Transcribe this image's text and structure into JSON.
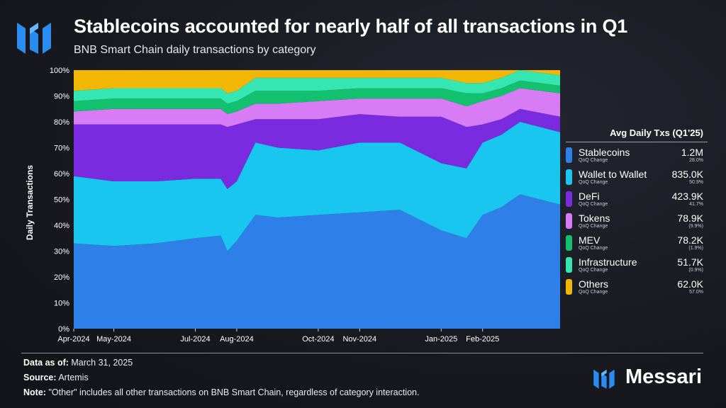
{
  "header": {
    "title": "Stablecoins accounted for nearly half of all transactions in Q1",
    "subtitle": "BNB Smart Chain daily transactions by category"
  },
  "legend": {
    "title": "Avg Daily Txs (Q1'25)",
    "sub_label": "QoQ Change",
    "items": [
      {
        "name": "Stablecoins",
        "value": "1.2M",
        "change": "28.0%",
        "color": "#2f7fe8"
      },
      {
        "name": "Wallet to Wallet",
        "value": "835.0K",
        "change": "50.9%",
        "color": "#19c6f0"
      },
      {
        "name": "DeFi",
        "value": "423.9K",
        "change": "41.7%",
        "color": "#7a2be0"
      },
      {
        "name": "Tokens",
        "value": "78.9K",
        "change": "(9.9%)",
        "color": "#d77cf5"
      },
      {
        "name": "MEV",
        "value": "78.2K",
        "change": "(1.9%)",
        "color": "#12c06e"
      },
      {
        "name": "Infrastructure",
        "value": "51.7K",
        "change": "(0.9%)",
        "color": "#35e6b2"
      },
      {
        "name": "Others",
        "value": "62.0K",
        "change": "57.0%",
        "color": "#f2b705"
      }
    ]
  },
  "footer": {
    "data_as_of_label": "Data as of:",
    "data_as_of": "March 31, 2025",
    "source_label": "Source:",
    "source": "Artemis",
    "note_label": "Note:",
    "note": "\"Other\" includes all other transactions on BNB Smart Chain, regardless of category interaction.",
    "brand": "Messari"
  },
  "chart_data": {
    "type": "area",
    "stacked": true,
    "ylabel": "Daily Transactions",
    "ylim": [
      0,
      100
    ],
    "y_unit": "%",
    "y_ticks": [
      "0%",
      "10%",
      "20%",
      "30%",
      "40%",
      "50%",
      "60%",
      "70%",
      "80%",
      "90%",
      "100%"
    ],
    "x_tick_labels": [
      "Apr-2024",
      "May-2024",
      "Jul-2024",
      "Aug-2024",
      "Oct-2024",
      "Nov-2024",
      "Jan-2025",
      "Feb-2025"
    ],
    "x": [
      "2024-04-01",
      "2024-05-01",
      "2024-06-01",
      "2024-07-01",
      "2024-07-20",
      "2024-07-25",
      "2024-08-01",
      "2024-08-15",
      "2024-09-01",
      "2024-10-01",
      "2024-11-01",
      "2024-12-01",
      "2025-01-01",
      "2025-01-20",
      "2025-02-01",
      "2025-02-15",
      "2025-03-01",
      "2025-03-31"
    ],
    "series": [
      {
        "name": "Stablecoins",
        "color": "#2f7fe8",
        "values": [
          33,
          32,
          33,
          35,
          36,
          30,
          34,
          44,
          43,
          44,
          45,
          46,
          38,
          35,
          44,
          47,
          52,
          48
        ]
      },
      {
        "name": "Wallet to Wallet",
        "color": "#19c6f0",
        "values": [
          26,
          25,
          24,
          23,
          22,
          24,
          23,
          28,
          27,
          25,
          27,
          26,
          26,
          27,
          28,
          28,
          28,
          28
        ]
      },
      {
        "name": "DeFi",
        "color": "#7a2be0",
        "values": [
          20,
          22,
          22,
          21,
          21,
          24,
          22,
          9,
          11,
          12,
          11,
          10,
          18,
          16,
          7,
          6,
          5,
          6
        ]
      },
      {
        "name": "Tokens",
        "color": "#d77cf5",
        "values": [
          5,
          6,
          6,
          6,
          6,
          5,
          5,
          6,
          6,
          7,
          6,
          7,
          7,
          8,
          9,
          9,
          8,
          9
        ]
      },
      {
        "name": "MEV",
        "color": "#12c06e",
        "values": [
          4,
          4,
          4,
          4,
          4,
          4,
          4,
          5,
          5,
          4,
          4,
          4,
          4,
          5,
          3,
          3,
          3,
          3
        ]
      },
      {
        "name": "Infrastructure",
        "color": "#35e6b2",
        "values": [
          4,
          4,
          4,
          4,
          4,
          4,
          4,
          5,
          5,
          5,
          4,
          4,
          4,
          4,
          4,
          4,
          4,
          4
        ]
      },
      {
        "name": "Others",
        "color": "#f2b705",
        "values": [
          8,
          7,
          7,
          7,
          7,
          9,
          8,
          3,
          3,
          3,
          3,
          3,
          3,
          5,
          5,
          3,
          0,
          2
        ]
      }
    ],
    "grid": false,
    "legend_position": "right"
  }
}
